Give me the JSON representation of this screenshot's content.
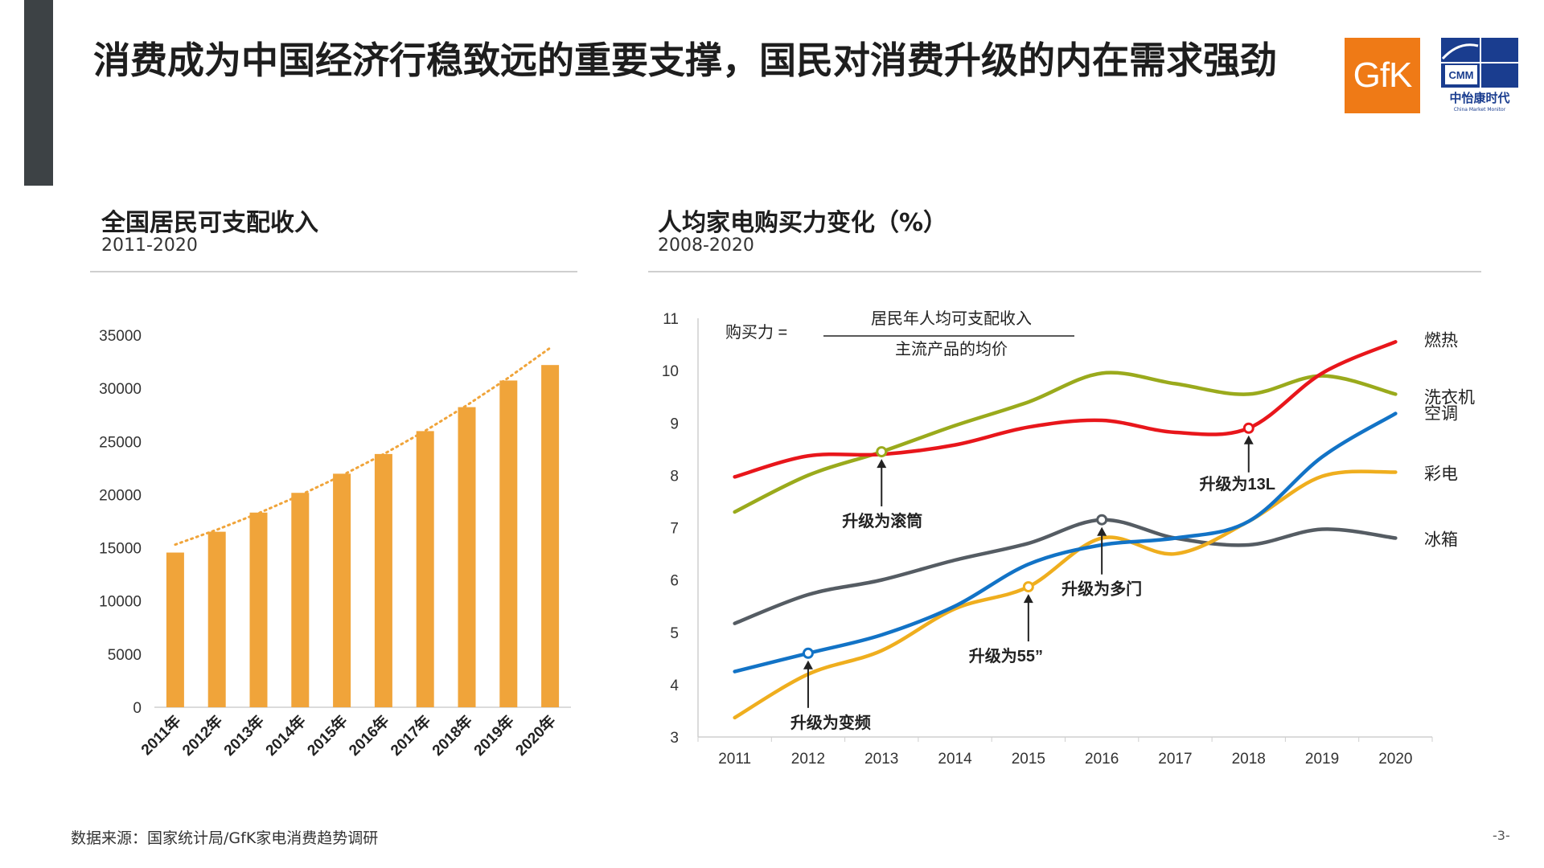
{
  "slide": {
    "title": "消费成为中国经济行稳致远的重要支撑，国民对消费升级的内在需求强劲",
    "source": "数据来源：国家统计局/GfK家电消费趋势调研",
    "page_number": "-3-"
  },
  "logos": {
    "gfk_text": "GfK",
    "cmm_badge": "CMM",
    "cmm_name": "中怡康时代",
    "cmm_english": "China Market Monitor"
  },
  "colors": {
    "accent_bar": "#3d4245",
    "bar": "#f0a43a",
    "trend": "#f0a43a",
    "gfk_orange": "#ef7a16",
    "cmm_blue": "#1a3d8f"
  },
  "left_panel": {
    "title": "全国居民可支配收入",
    "subtitle": "2011-2020"
  },
  "right_panel": {
    "title": "人均家电购买力变化（%）",
    "subtitle": "2008-2020",
    "formula": {
      "label": "购买力 =",
      "numerator": "居民年人均可支配收入",
      "denominator": "主流产品的均价"
    }
  },
  "chart_data": [
    {
      "type": "bar",
      "title": "全国居民可支配收入",
      "subtitle": "2011-2020",
      "categories": [
        "2011年",
        "2012年",
        "2013年",
        "2014年",
        "2015年",
        "2016年",
        "2017年",
        "2018年",
        "2019年",
        "2020年"
      ],
      "values": [
        14550,
        16510,
        18311,
        20167,
        21966,
        23821,
        25974,
        28228,
        30733,
        32189
      ],
      "trendline": {
        "type": "dotted",
        "values": [
          15300,
          16700,
          18250,
          19950,
          21800,
          23800,
          26000,
          28400,
          31000,
          33800
        ]
      },
      "yticks": [
        "0",
        "5000",
        "10000",
        "15000",
        "20000",
        "25000",
        "30000",
        "35000"
      ],
      "ylim": [
        0,
        35000
      ],
      "xlabel": "",
      "ylabel": "",
      "grid": false
    },
    {
      "type": "line",
      "title": "人均家电购买力变化（%）",
      "subtitle": "2008-2020",
      "x": [
        "2011",
        "2012",
        "2013",
        "2014",
        "2015",
        "2016",
        "2017",
        "2018",
        "2019",
        "2020"
      ],
      "yticks": [
        "3",
        "4",
        "5",
        "6",
        "7",
        "8",
        "9",
        "10",
        "11"
      ],
      "ylim": [
        3,
        11
      ],
      "grid": false,
      "series": [
        {
          "name": "燃热",
          "color": "#e8161b",
          "values": [
            7.97,
            8.37,
            8.4,
            8.58,
            8.92,
            9.05,
            8.82,
            8.9,
            9.95,
            10.55
          ]
        },
        {
          "name": "洗衣机",
          "color": "#9aaa1c",
          "values": [
            7.3,
            8.0,
            8.45,
            8.95,
            9.4,
            9.95,
            9.75,
            9.55,
            9.9,
            9.55
          ]
        },
        {
          "name": "空调",
          "color": "#1273c6",
          "values": [
            4.25,
            4.6,
            4.95,
            5.5,
            6.3,
            6.67,
            6.8,
            7.12,
            8.35,
            9.18
          ]
        },
        {
          "name": "彩电",
          "color": "#efae1e",
          "values": [
            3.37,
            4.2,
            4.65,
            5.45,
            5.87,
            6.8,
            6.5,
            7.12,
            7.98,
            8.06
          ]
        },
        {
          "name": "冰箱",
          "color": "#555c63",
          "values": [
            5.17,
            5.72,
            6.0,
            6.38,
            6.7,
            7.15,
            6.8,
            6.67,
            6.97,
            6.8
          ]
        }
      ],
      "annotations": [
        {
          "text": "升级为滚筒",
          "x": "2013",
          "y": 8.45,
          "series": "洗衣机"
        },
        {
          "text": "升级为变频",
          "x": "2012",
          "y": 4.6,
          "series": "空调"
        },
        {
          "text": "升级为55”",
          "x": "2015",
          "y": 5.87,
          "series": "彩电"
        },
        {
          "text": "升级为多门",
          "x": "2016",
          "y": 7.15,
          "series": "冰箱"
        },
        {
          "text": "升级为13L",
          "x": "2018",
          "y": 8.9,
          "series": "燃热"
        }
      ]
    }
  ]
}
